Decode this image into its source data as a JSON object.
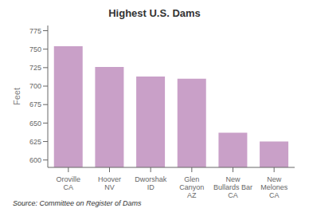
{
  "chart_data": {
    "type": "bar",
    "title": "Highest U.S. Dams",
    "ylabel": "Feet",
    "categories": [
      "Oroville\nCA",
      "Hoover\nNV",
      "Dworshak\nID",
      "Glen\nCanyon\nAZ",
      "New\nBullards Bar\nCA",
      "New\nMelones\nCA"
    ],
    "values": [
      754,
      726,
      713,
      710,
      637,
      625
    ],
    "color": "#c9a0c8",
    "ylim": [
      590,
      782
    ],
    "yticks": [
      600,
      625,
      650,
      675,
      700,
      725,
      750,
      775
    ],
    "grid": false,
    "annotations": [
      "Source: Committee on Register of Dams"
    ]
  }
}
